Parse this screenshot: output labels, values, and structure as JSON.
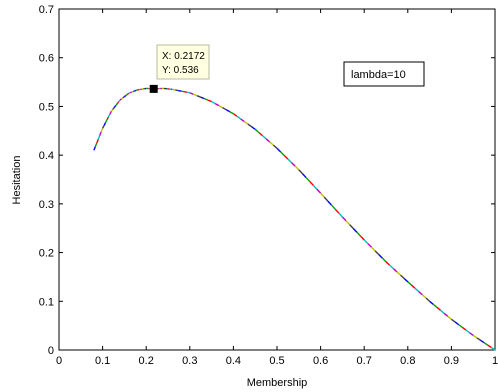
{
  "chart_data": {
    "type": "line",
    "xlabel": "Membership",
    "ylabel": "Hesitation",
    "xlim": [
      0,
      1
    ],
    "ylim": [
      0,
      0.7
    ],
    "xticks": [
      "0",
      "0.1",
      "0.2",
      "0.3",
      "0.4",
      "0.5",
      "0.6",
      "0.7",
      "0.8",
      "0.9",
      "1"
    ],
    "yticks": [
      "0",
      "0.1",
      "0.2",
      "0.3",
      "0.4",
      "0.5",
      "0.6",
      "0.7"
    ],
    "grid": false,
    "legend": {
      "text": "lambda=10",
      "placement": "top-right"
    },
    "datatip": {
      "x_text": "X: 0.2172",
      "y_text": "Y: 0.536",
      "x": 0.2172,
      "y": 0.536
    },
    "series": [
      {
        "x": [
          0.08,
          0.1,
          0.12,
          0.14,
          0.16,
          0.18,
          0.2,
          0.2172,
          0.24,
          0.26,
          0.3,
          0.35,
          0.4,
          0.45,
          0.5,
          0.55,
          0.6,
          0.65,
          0.7,
          0.75,
          0.8,
          0.85,
          0.9,
          0.95,
          1.0
        ],
        "y": [
          0.41,
          0.455,
          0.49,
          0.513,
          0.527,
          0.534,
          0.537,
          0.536,
          0.537,
          0.535,
          0.528,
          0.51,
          0.485,
          0.453,
          0.414,
          0.37,
          0.322,
          0.273,
          0.226,
          0.181,
          0.14,
          0.1,
          0.063,
          0.03,
          0.0
        ]
      }
    ],
    "segment_colors": [
      "#0000ff",
      "#00a000",
      "#ff0000",
      "#00bfbf",
      "#bf00bf",
      "#bfbf00",
      "#404040"
    ]
  }
}
